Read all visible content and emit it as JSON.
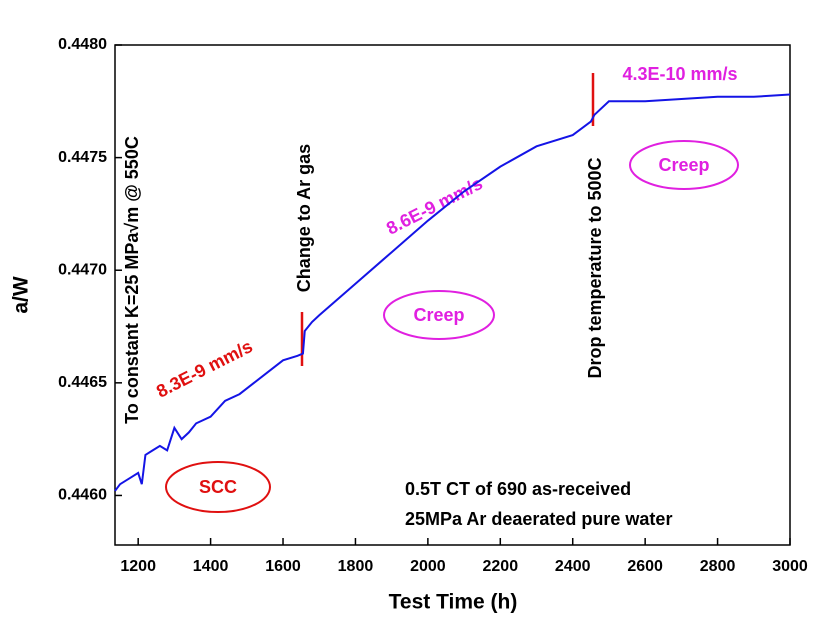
{
  "chart_data": {
    "type": "line",
    "x_label": "Test Time (h)",
    "y_label": "a/W",
    "xlim": [
      1136,
      3000
    ],
    "ylim": [
      0.44578,
      0.448
    ],
    "xticks": [
      1200,
      1400,
      1600,
      1800,
      2000,
      2200,
      2400,
      2600,
      2800,
      3000
    ],
    "yticks": [
      {
        "value": 0.446,
        "label": "0.4460"
      },
      {
        "value": 0.4465,
        "label": "0.4465"
      },
      {
        "value": 0.447,
        "label": "0.4470"
      },
      {
        "value": 0.4475,
        "label": "0.4475"
      },
      {
        "value": 0.448,
        "label": "0.4480"
      }
    ],
    "series": [
      {
        "color": "#1414e6",
        "x": [
          1136,
          1150,
          1180,
          1200,
          1210,
          1220,
          1240,
          1260,
          1280,
          1300,
          1320,
          1340,
          1360,
          1400,
          1440,
          1480,
          1520,
          1560,
          1600,
          1640,
          1655,
          1660,
          1680,
          1700,
          1800,
          1900,
          2000,
          2100,
          2200,
          2300,
          2400,
          2450,
          2460,
          2500,
          2600,
          2700,
          2800,
          2900,
          3000
        ],
        "values": [
          0.44602,
          0.44605,
          0.44608,
          0.4461,
          0.44605,
          0.44618,
          0.4462,
          0.44622,
          0.4462,
          0.4463,
          0.44625,
          0.44628,
          0.44632,
          0.44635,
          0.44642,
          0.44645,
          0.4465,
          0.44655,
          0.4466,
          0.44662,
          0.44663,
          0.44673,
          0.44677,
          0.4468,
          0.44694,
          0.44708,
          0.44722,
          0.44735,
          0.44746,
          0.44755,
          0.4476,
          0.44766,
          0.44769,
          0.44775,
          0.44775,
          0.44776,
          0.44777,
          0.44777,
          0.44778
        ]
      }
    ],
    "annotations": {
      "event1": "To constant K=25 MPa√m @ 550C",
      "event2": "Change to Ar gas",
      "event3": "Drop temperature to 500C",
      "rate1": "8.3E-9 mm/s",
      "rate2": "8.6E-9 mm/s",
      "rate3": "4.3E-10 mm/s",
      "region1": "SCC",
      "region2": "Creep",
      "region3": "Creep",
      "info1": "0.5T CT of 690 as-received",
      "info2": "25MPa  Ar deaerated pure water"
    }
  }
}
